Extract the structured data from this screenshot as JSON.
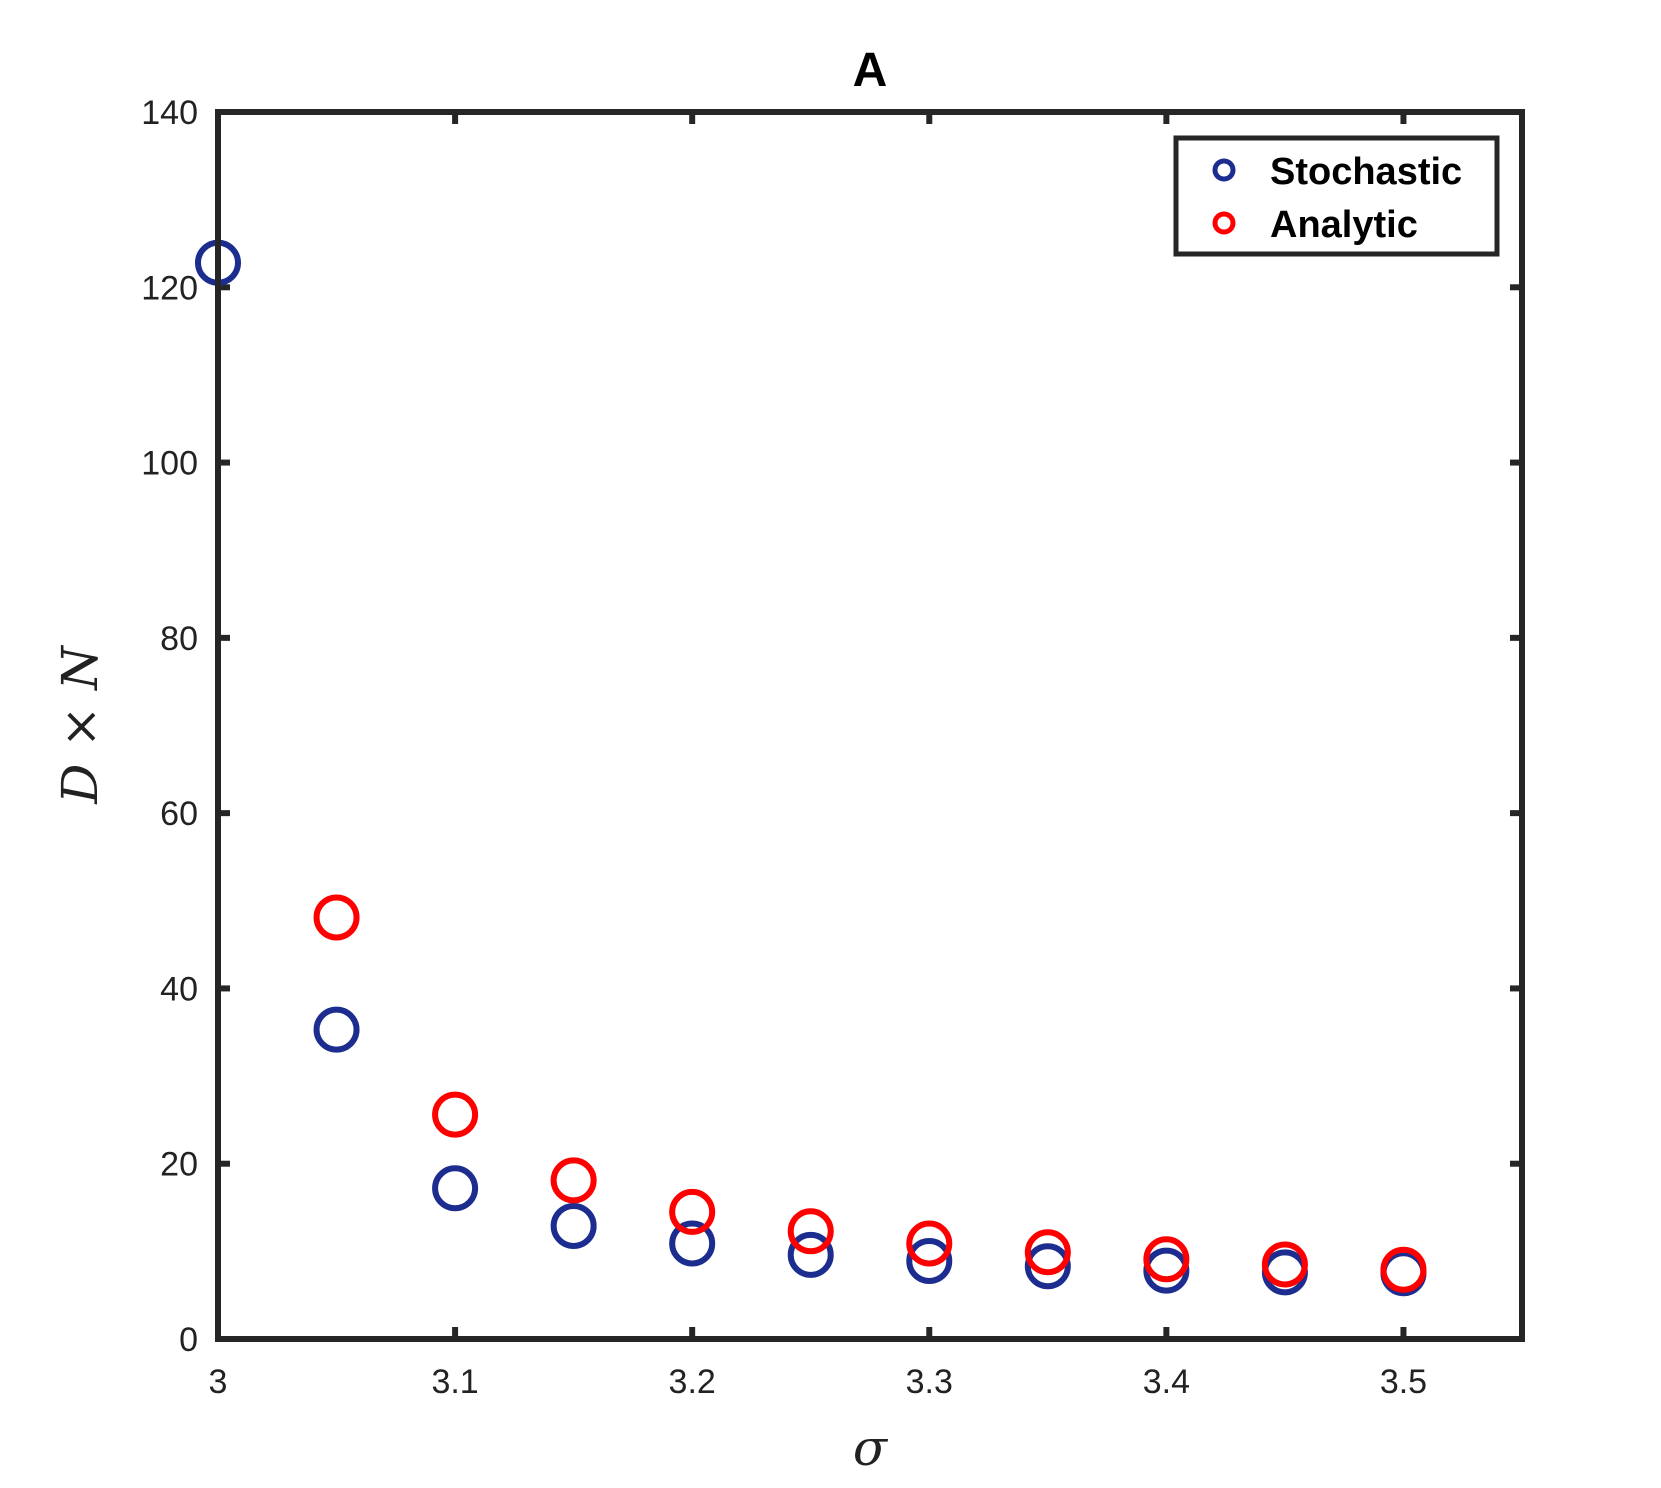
{
  "chart_data": {
    "type": "scatter",
    "title": "A",
    "xlabel": "σ",
    "ylabel": "D × N",
    "xlim": [
      3,
      3.55
    ],
    "ylim": [
      0,
      140
    ],
    "xticks": [
      3,
      3.1,
      3.2,
      3.3,
      3.4,
      3.5
    ],
    "xtick_labels": [
      "3",
      "3.1",
      "3.2",
      "3.3",
      "3.4",
      "3.5"
    ],
    "yticks": [
      0,
      20,
      40,
      60,
      80,
      100,
      120,
      140
    ],
    "ytick_labels": [
      "0",
      "20",
      "40",
      "60",
      "80",
      "100",
      "120",
      "140"
    ],
    "grid": false,
    "legend_position": "top-right",
    "series": [
      {
        "name": "Stochastic",
        "color": "#1c2d8f",
        "marker": "open-circle",
        "x": [
          3.0,
          3.05,
          3.1,
          3.15,
          3.2,
          3.25,
          3.3,
          3.35,
          3.4,
          3.45,
          3.5
        ],
        "y": [
          122.8,
          35.3,
          17.2,
          12.9,
          10.9,
          9.6,
          8.9,
          8.3,
          7.8,
          7.6,
          7.5
        ]
      },
      {
        "name": "Analytic",
        "color": "#ff0000",
        "marker": "open-circle",
        "x": [
          3.05,
          3.1,
          3.15,
          3.2,
          3.25,
          3.3,
          3.35,
          3.4,
          3.45,
          3.5
        ],
        "y": [
          48.1,
          25.6,
          18.1,
          14.5,
          12.3,
          10.9,
          9.9,
          9.1,
          8.5,
          7.9
        ]
      }
    ]
  }
}
